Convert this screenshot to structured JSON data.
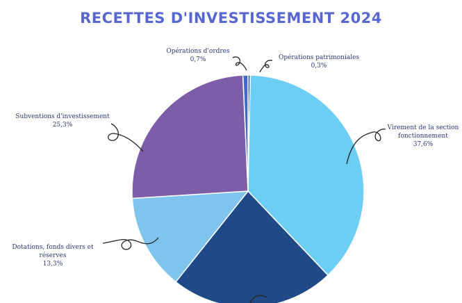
{
  "chart_data": {
    "type": "pie",
    "title": "RECETTES D'INVESTISSEMENT 2024",
    "categories": [
      "Opérations patrimoniales",
      "Virement de la section fonctionnement",
      null,
      "Dotations, fonds divers et réserves",
      "Subventions d'investissement",
      "Opérations d'ordres"
    ],
    "values": [
      0.3,
      37.6,
      22.8,
      13.3,
      25.3,
      0.7
    ],
    "value_labels": [
      "0,3%",
      "37,6%",
      null,
      "13,3%",
      "25,3%",
      "0,7%"
    ],
    "colors": [
      "#1d2f6b",
      "#6ccdf5",
      "#1f4a87",
      "#7fc4ec",
      "#7d5ca8",
      "#3f6bc4"
    ]
  }
}
